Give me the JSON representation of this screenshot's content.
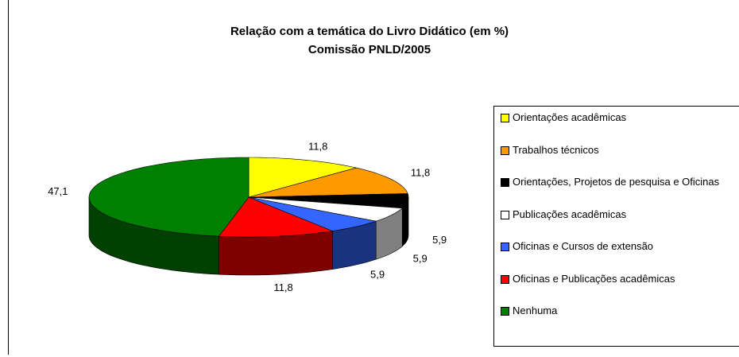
{
  "chart_data": {
    "type": "pie",
    "title": "Relação com a temática do Livro Didático (em %)",
    "subtitle": "Comissão PNLD/2005",
    "categories": [
      "Orientações acadêmicas",
      "Trabalhos técnicos",
      "Orientações, Projetos de pesquisa e Oficinas",
      "Publicações acadêmicas",
      "Oficinas e Cursos de extensão",
      "Oficinas e Publicações acadêmicas",
      "Nenhuma"
    ],
    "values": [
      11.8,
      11.8,
      5.9,
      5.9,
      5.9,
      11.8,
      47.1
    ],
    "value_labels": [
      "11,8",
      "11,8",
      "5,9",
      "5,9",
      "5,9",
      "11,8",
      "47,1"
    ],
    "colors": [
      "#ffff00",
      "#ff9900",
      "#000000",
      "#ffffff",
      "#3366ff",
      "#ff0000",
      "#008000"
    ],
    "legend": "right"
  }
}
